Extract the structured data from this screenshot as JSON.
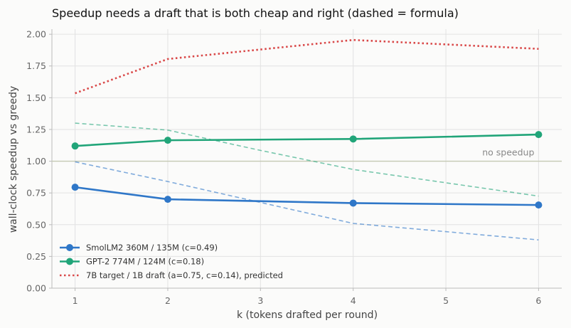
{
  "chart_data": {
    "type": "line",
    "title": "Speedup needs a draft that is both cheap and right (dashed = formula)",
    "xlabel": "k (tokens drafted per round)",
    "ylabel": "wall-clock speedup vs greedy",
    "xlim": [
      0.75,
      6.25
    ],
    "ylim": [
      0,
      2.04
    ],
    "xticks": [
      "1",
      "2",
      "3",
      "4",
      "5",
      "6"
    ],
    "yticks": [
      "0.00",
      "0.25",
      "0.50",
      "0.75",
      "1.00",
      "1.25",
      "1.50",
      "1.75",
      "2.00"
    ],
    "grid": true,
    "legend_position": "lower-left",
    "reference_line": {
      "y": 1.0,
      "label": "no speedup",
      "color": "#c5c9b4"
    },
    "series": [
      {
        "name": "SmolLM2 360M / 135M  (c=0.49)",
        "color": "#2f77c8",
        "style": "solid-markers",
        "x": [
          1,
          2,
          4,
          6
        ],
        "values": [
          0.795,
          0.7,
          0.67,
          0.655
        ]
      },
      {
        "name": "GPT-2 774M / 124M  (c=0.18)",
        "color": "#21a579",
        "style": "solid-markers",
        "x": [
          1,
          2,
          4,
          6
        ],
        "values": [
          1.12,
          1.165,
          1.175,
          1.21
        ]
      },
      {
        "name": "7B target / 1B draft (a=0.75, c=0.14), predicted",
        "color": "#d94848",
        "style": "dotted",
        "x": [
          1,
          2,
          3,
          4,
          5,
          6
        ],
        "values": [
          1.535,
          1.805,
          1.88,
          1.955,
          1.92,
          1.885
        ]
      },
      {
        "color": "#2f77c8",
        "style": "dashed-formula",
        "x": [
          1,
          2,
          3,
          4,
          5,
          6
        ],
        "values": [
          0.995,
          0.84,
          0.675,
          0.51,
          0.445,
          0.38
        ]
      },
      {
        "color": "#21a579",
        "style": "dashed-formula",
        "x": [
          1,
          2,
          3,
          4,
          5,
          6
        ],
        "values": [
          1.3,
          1.245,
          1.085,
          0.935,
          0.83,
          0.725
        ]
      }
    ]
  }
}
